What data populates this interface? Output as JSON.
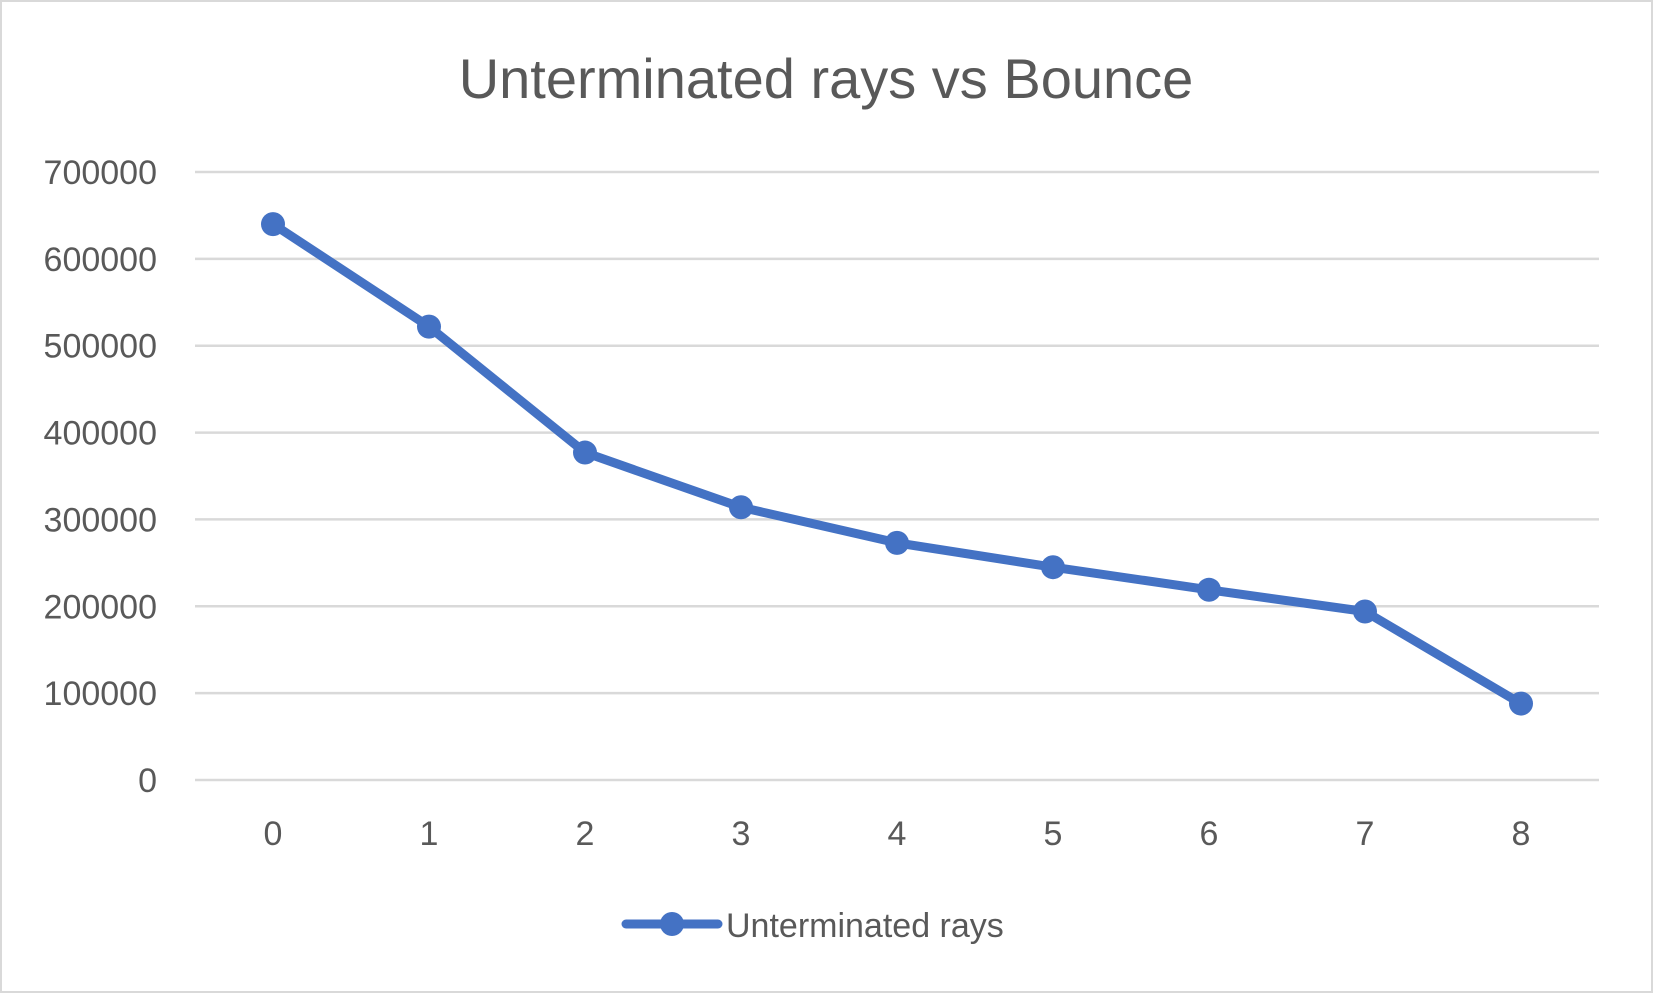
{
  "chart_data": {
    "type": "line",
    "title": "Unterminated rays vs Bounce",
    "xlabel": "",
    "ylabel": "",
    "categories": [
      "0",
      "1",
      "2",
      "3",
      "4",
      "5",
      "6",
      "7",
      "8"
    ],
    "series": [
      {
        "name": "Unterminated rays",
        "values": [
          640000,
          522000,
          377000,
          314000,
          273000,
          245000,
          219000,
          194000,
          88000
        ],
        "color": "#4472c4",
        "marker": "circle"
      }
    ],
    "yticks": [
      "0",
      "100000",
      "200000",
      "300000",
      "400000",
      "500000",
      "600000",
      "700000"
    ],
    "ylim": [
      0,
      700000
    ],
    "grid": true,
    "legend_position": "bottom",
    "gridline_color": "#d9d9d9",
    "text_color": "#595959"
  }
}
